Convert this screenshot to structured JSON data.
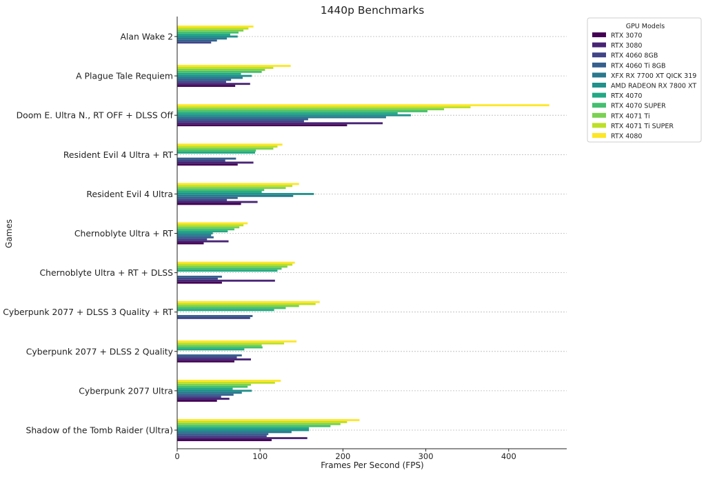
{
  "chart_data": {
    "type": "bar",
    "orientation": "horizontal",
    "title": "1440p Benchmarks",
    "xlabel": "Frames Per Second (FPS)",
    "ylabel": "Games",
    "xlim": [
      0,
      470
    ],
    "xticks": [
      0,
      100,
      200,
      300,
      400
    ],
    "grid": "y-dotted",
    "legend": {
      "title": "GPU Models",
      "placement": "top-right outside"
    },
    "categories": [
      "Alan Wake 2",
      "A Plague Tale Requiem",
      "Doom E. Ultra N., RT OFF + DLSS Off",
      "Resident Evil 4 Ultra + RT",
      "Resident Evil 4 Ultra",
      "Chernoblyte Ultra + RT",
      "Chernoblyte Ultra + RT + DLSS",
      "Cyberpunk 2077 + DLSS 3 Quality + RT",
      "Cyberpunk 2077 + DLSS 2 Quality",
      "Cyberpunk 2077 Ultra",
      "Shadow of the Tomb Raider (Ultra)"
    ],
    "series": [
      {
        "name": "RTX 3070",
        "color": "#440154",
        "values": [
          0,
          70,
          205,
          73,
          77,
          32,
          54,
          0,
          69,
          48,
          114
        ]
      },
      {
        "name": "RTX 3080",
        "color": "#482475",
        "values": [
          0,
          88,
          248,
          92,
          97,
          62,
          118,
          0,
          89,
          63,
          157
        ]
      },
      {
        "name": "RTX 4060 8GB",
        "color": "#414487",
        "values": [
          41,
          59,
          153,
          58,
          60,
          36,
          49,
          88,
          72,
          53,
          108
        ]
      },
      {
        "name": "RTX 4060 Ti 8GB",
        "color": "#355f8d",
        "values": [
          48,
          65,
          158,
          71,
          73,
          44,
          54,
          91,
          78,
          68,
          110
        ]
      },
      {
        "name": "XFX RX 7700 XT QICK 319",
        "color": "#2a788e",
        "values": [
          60,
          79,
          252,
          0,
          140,
          41,
          0,
          0,
          0,
          78,
          138
        ]
      },
      {
        "name": "AMD RADEON RX 7800 XT",
        "color": "#21918c",
        "values": [
          73,
          90,
          282,
          0,
          165,
          43,
          0,
          0,
          0,
          90,
          159
        ]
      },
      {
        "name": "RTX 4070",
        "color": "#22a884",
        "values": [
          64,
          77,
          266,
          94,
          102,
          61,
          121,
          117,
          81,
          67,
          159
        ]
      },
      {
        "name": "RTX 4070 SUPER",
        "color": "#44bf70",
        "values": [
          74,
          102,
          302,
          95,
          105,
          69,
          126,
          131,
          103,
          85,
          185
        ]
      },
      {
        "name": "RTX 4071 Ti",
        "color": "#7ad151",
        "values": [
          80,
          106,
          322,
          116,
          131,
          75,
          133,
          147,
          102,
          89,
          197
        ]
      },
      {
        "name": "RTX 4071 Ti SUPER",
        "color": "#bddf26",
        "values": [
          86,
          116,
          354,
          121,
          139,
          80,
          139,
          167,
          129,
          118,
          205
        ]
      },
      {
        "name": "RTX 4080",
        "color": "#fde725",
        "values": [
          92,
          137,
          449,
          127,
          147,
          85,
          142,
          172,
          144,
          125,
          220
        ]
      }
    ]
  }
}
